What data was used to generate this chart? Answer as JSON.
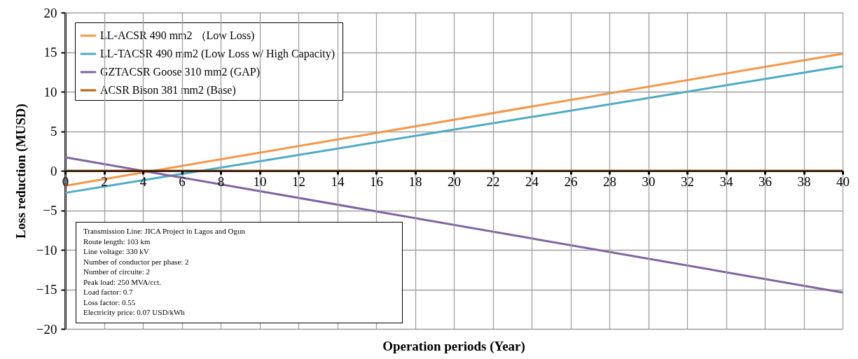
{
  "chart_data": {
    "type": "line",
    "xlabel": "Operation periods (Year)",
    "ylabel": "Loss reduction  (MUSD)",
    "x": [
      0,
      40
    ],
    "series": [
      {
        "name": "LL-ACSR 490 mm2 （Low Loss)",
        "color": "#f79646",
        "values": [
          -1.9,
          14.8
        ]
      },
      {
        "name": "LL-TACSR 490 mm2  (Low Loss w/ High Capacity)",
        "color": "#4bacc6",
        "values": [
          -2.8,
          13.2
        ]
      },
      {
        "name": "GZTACSR Goose 310 mm2 (GAP)",
        "color": "#8064a2",
        "values": [
          1.7,
          -15.4
        ]
      },
      {
        "name": "ACSR Bison 381 mm2 (Base)",
        "color": "#c0600a",
        "values": [
          0,
          0
        ]
      }
    ],
    "xlim": [
      0,
      40
    ],
    "xticks": [
      0,
      2,
      4,
      6,
      8,
      10,
      12,
      14,
      16,
      18,
      20,
      22,
      24,
      26,
      28,
      30,
      32,
      34,
      36,
      38,
      40
    ],
    "ylim": [
      -20,
      20
    ],
    "yticks": [
      -20,
      -15,
      -10,
      -5,
      0,
      5,
      10,
      15,
      20
    ],
    "grid": true,
    "legend": "top left",
    "marker": "none",
    "line_style": "solid",
    "annotations": [
      "Transmission Line: JICA Project in Lagos and Ogun",
      "Route length: 103 km",
      "Line voltage: 330 kV",
      "Number of conductor per phase: 2",
      "Number of circuite: 2",
      "Peak load: 250 MVA/cct.",
      "Load factor: 0.7",
      "Loss factor: 0.55",
      "Electricity price: 0.07 USD/kWh"
    ]
  }
}
